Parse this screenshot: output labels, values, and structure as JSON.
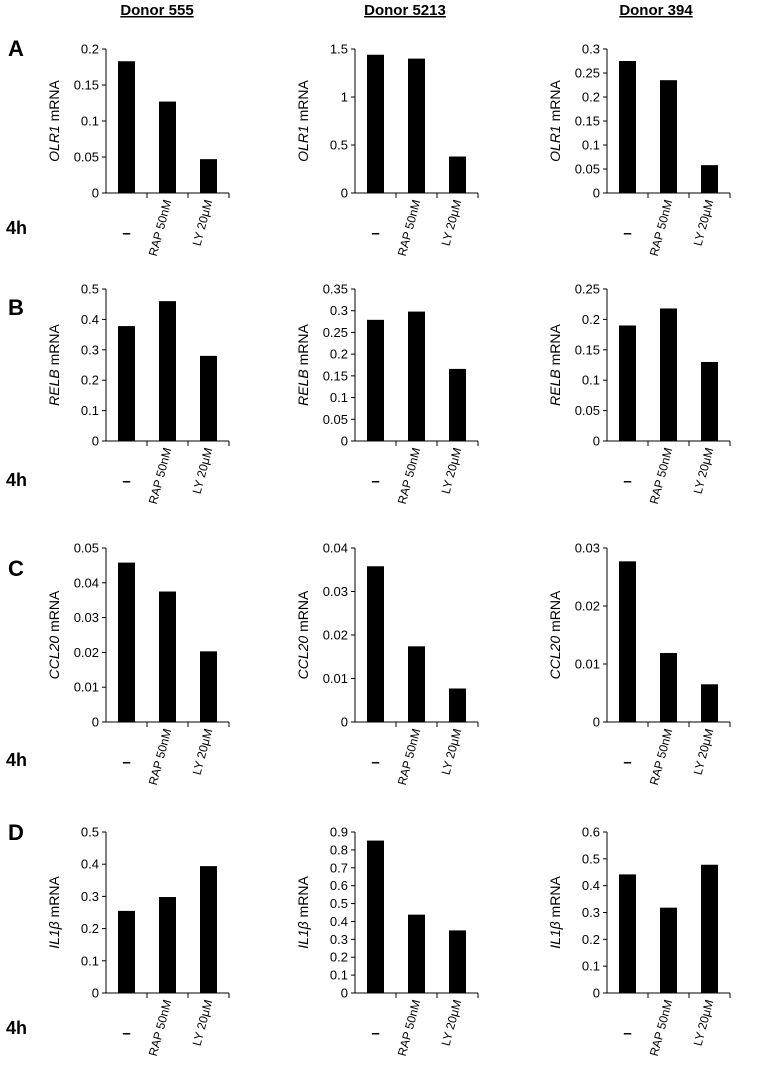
{
  "donors": [
    "Donor 555",
    "Donor 5213",
    "Donor 394"
  ],
  "panel_letters": [
    "A",
    "B",
    "C",
    "D"
  ],
  "time_label": "4h",
  "categories": [
    "–",
    "RAP 50nM",
    "LY 20μM"
  ],
  "chart_data": [
    {
      "type": "bar",
      "panel": "A",
      "donor": "Donor 555",
      "gene": "OLR1",
      "ylabel_suffix": " mRNA",
      "ylim": [
        0,
        0.2
      ],
      "ticks": [
        0,
        0.05,
        0.1,
        0.15,
        0.2
      ],
      "tick_labels": [
        "0",
        "0.05",
        "0.1",
        "0.15",
        "0.2"
      ],
      "categories": [
        "–",
        "RAP 50nM",
        "LY 20μM"
      ],
      "values": [
        0.183,
        0.127,
        0.047
      ]
    },
    {
      "type": "bar",
      "panel": "A",
      "donor": "Donor 5213",
      "gene": "OLR1",
      "ylabel_suffix": " mRNA",
      "ylim": [
        0,
        1.5
      ],
      "ticks": [
        0,
        0.5,
        1,
        1.5
      ],
      "tick_labels": [
        "0",
        "0.5",
        "1",
        "1.5"
      ],
      "categories": [
        "–",
        "RAP 50nM",
        "LY 20μM"
      ],
      "values": [
        1.44,
        1.4,
        0.38
      ]
    },
    {
      "type": "bar",
      "panel": "A",
      "donor": "Donor 394",
      "gene": "OLR1",
      "ylabel_suffix": " mRNA",
      "ylim": [
        0,
        0.3
      ],
      "ticks": [
        0,
        0.05,
        0.1,
        0.15,
        0.2,
        0.25,
        0.3
      ],
      "tick_labels": [
        "0",
        "0.05",
        "0.1",
        "0.15",
        "0.2",
        "0.25",
        "0.3"
      ],
      "categories": [
        "–",
        "RAP 50nM",
        "LY 20μM"
      ],
      "values": [
        0.275,
        0.235,
        0.058
      ]
    },
    {
      "type": "bar",
      "panel": "B",
      "donor": "Donor 555",
      "gene": "RELB",
      "ylabel_suffix": " mRNA",
      "ylim": [
        0,
        0.5
      ],
      "ticks": [
        0,
        0.1,
        0.2,
        0.3,
        0.4,
        0.5
      ],
      "tick_labels": [
        "0",
        "0.1",
        "0.2",
        "0.3",
        "0.4",
        "0.5"
      ],
      "categories": [
        "–",
        "RAP 50nM",
        "LY 20μM"
      ],
      "values": [
        0.378,
        0.46,
        0.28
      ]
    },
    {
      "type": "bar",
      "panel": "B",
      "donor": "Donor 5213",
      "gene": "RELB",
      "ylabel_suffix": " mRNA",
      "ylim": [
        0,
        0.35
      ],
      "ticks": [
        0,
        0.05,
        0.1,
        0.15,
        0.2,
        0.25,
        0.3,
        0.35
      ],
      "tick_labels": [
        "0",
        "0.05",
        "0.1",
        "0.15",
        "0.2",
        "0.25",
        "0.3",
        "0.35"
      ],
      "categories": [
        "–",
        "RAP 50nM",
        "LY 20μM"
      ],
      "values": [
        0.279,
        0.298,
        0.166
      ]
    },
    {
      "type": "bar",
      "panel": "B",
      "donor": "Donor 394",
      "gene": "RELB",
      "ylabel_suffix": " mRNA",
      "ylim": [
        0,
        0.25
      ],
      "ticks": [
        0,
        0.05,
        0.1,
        0.15,
        0.2,
        0.25
      ],
      "tick_labels": [
        "0",
        "0.05",
        "0.1",
        "0.15",
        "0.2",
        "0.25"
      ],
      "categories": [
        "–",
        "RAP 50nM",
        "LY 20μM"
      ],
      "values": [
        0.19,
        0.218,
        0.13
      ]
    },
    {
      "type": "bar",
      "panel": "C",
      "donor": "Donor 555",
      "gene": "CCL20",
      "ylabel_suffix": " mRNA",
      "ylim": [
        0,
        0.05
      ],
      "ticks": [
        0,
        0.01,
        0.02,
        0.03,
        0.04,
        0.05
      ],
      "tick_labels": [
        "0",
        "0.01",
        "0.02",
        "0.03",
        "0.04",
        "0.05"
      ],
      "categories": [
        "–",
        "RAP 50nM",
        "LY 20μM"
      ],
      "values": [
        0.0458,
        0.0375,
        0.0203
      ]
    },
    {
      "type": "bar",
      "panel": "C",
      "donor": "Donor 5213",
      "gene": "CCL20",
      "ylabel_suffix": " mRNA",
      "ylim": [
        0,
        0.04
      ],
      "ticks": [
        0,
        0.01,
        0.02,
        0.03,
        0.04
      ],
      "tick_labels": [
        "0",
        "0.01",
        "0.02",
        "0.03",
        "0.04"
      ],
      "categories": [
        "–",
        "RAP 50nM",
        "LY 20μM"
      ],
      "values": [
        0.0358,
        0.0174,
        0.0077
      ]
    },
    {
      "type": "bar",
      "panel": "C",
      "donor": "Donor 394",
      "gene": "CCL20",
      "ylabel_suffix": " mRNA",
      "ylim": [
        0,
        0.03
      ],
      "ticks": [
        0,
        0.01,
        0.02,
        0.03
      ],
      "tick_labels": [
        "0",
        "0.01",
        "0.02",
        "0.03"
      ],
      "categories": [
        "–",
        "RAP 50nM",
        "LY 20μM"
      ],
      "values": [
        0.0277,
        0.0119,
        0.0065
      ]
    },
    {
      "type": "bar",
      "panel": "D",
      "donor": "Donor 555",
      "gene": "IL1β",
      "ylabel_suffix": " mRNA",
      "ylim": [
        0,
        0.5
      ],
      "ticks": [
        0,
        0.1,
        0.2,
        0.3,
        0.4,
        0.5
      ],
      "tick_labels": [
        "0",
        "0.1",
        "0.2",
        "0.3",
        "0.4",
        "0.5"
      ],
      "categories": [
        "–",
        "RAP 50nM",
        "LY 20μM"
      ],
      "values": [
        0.255,
        0.298,
        0.394
      ]
    },
    {
      "type": "bar",
      "panel": "D",
      "donor": "Donor 5213",
      "gene": "IL1β",
      "ylabel_suffix": " mRNA",
      "ylim": [
        0,
        0.9
      ],
      "ticks": [
        0,
        0.1,
        0.2,
        0.3,
        0.4,
        0.5,
        0.6,
        0.7,
        0.8,
        0.9
      ],
      "tick_labels": [
        "0",
        "0.1",
        "0.2",
        "0.3",
        "0.4",
        "0.5",
        "0.6",
        "0.7",
        "0.8",
        "0.9"
      ],
      "categories": [
        "–",
        "RAP 50nM",
        "LY 20μM"
      ],
      "values": [
        0.852,
        0.438,
        0.35
      ]
    },
    {
      "type": "bar",
      "panel": "D",
      "donor": "Donor 394",
      "gene": "IL1β",
      "ylabel_suffix": " mRNA",
      "ylim": [
        0,
        0.6
      ],
      "ticks": [
        0,
        0.1,
        0.2,
        0.3,
        0.4,
        0.5,
        0.6
      ],
      "tick_labels": [
        "0",
        "0.1",
        "0.2",
        "0.3",
        "0.4",
        "0.5",
        "0.6"
      ],
      "categories": [
        "–",
        "RAP 50nM",
        "LY 20μM"
      ],
      "values": [
        0.442,
        0.318,
        0.478
      ]
    }
  ]
}
